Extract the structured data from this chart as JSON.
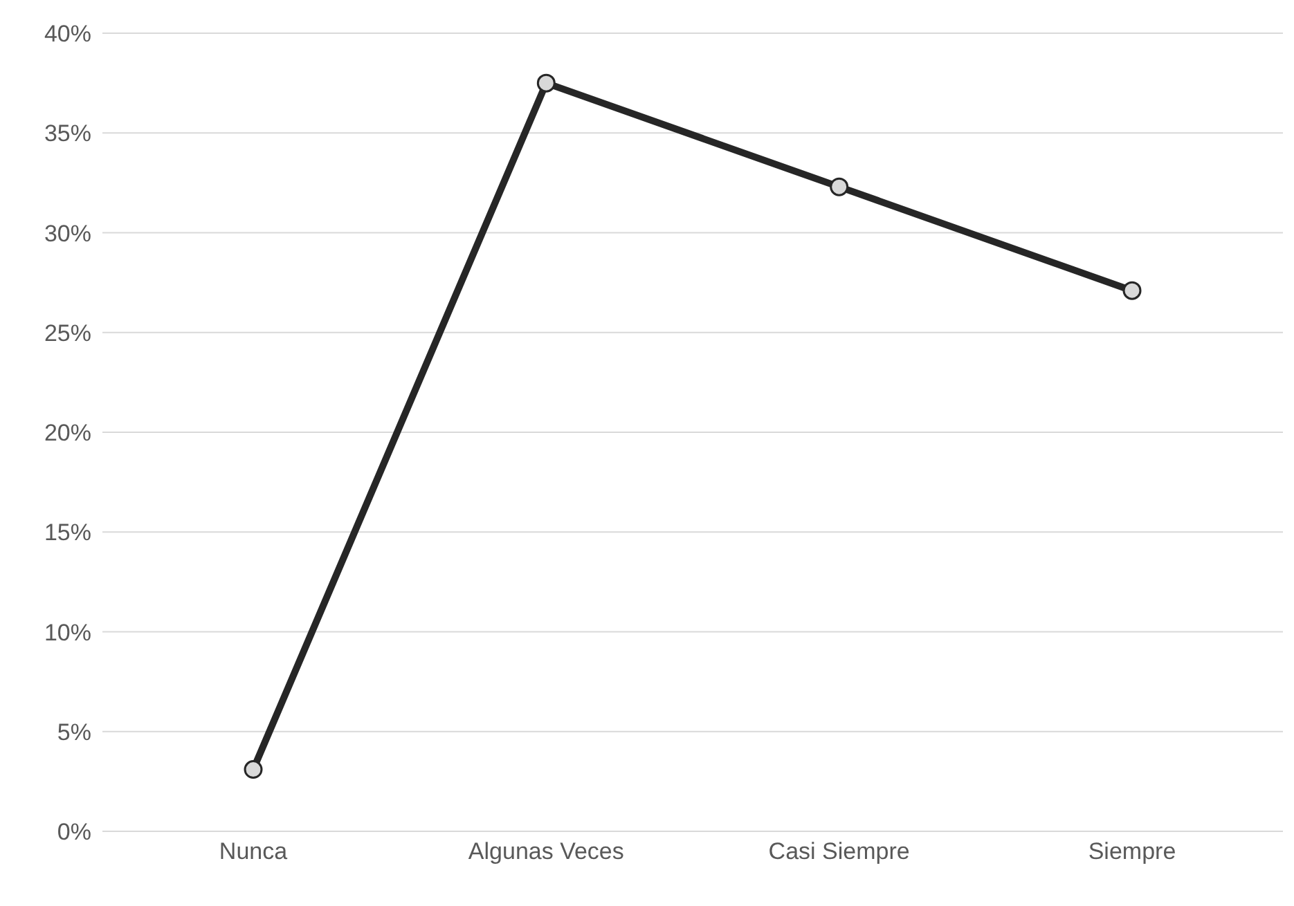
{
  "chart_data": {
    "type": "line",
    "categories": [
      "Nunca",
      "Algunas Veces",
      "Casi Siempre",
      "Siempre"
    ],
    "series": [
      {
        "color": "#262626",
        "values": [
          3.1,
          37.5,
          32.3,
          27.1
        ]
      }
    ],
    "ylim": [
      0,
      40
    ],
    "yticks": [
      {
        "value": 0,
        "label": "0%"
      },
      {
        "value": 5,
        "label": "5%"
      },
      {
        "value": 10,
        "label": "10%"
      },
      {
        "value": 15,
        "label": "15%"
      },
      {
        "value": 20,
        "label": "20%"
      },
      {
        "value": 25,
        "label": "25%"
      },
      {
        "value": 30,
        "label": "30%"
      },
      {
        "value": 35,
        "label": "35%"
      },
      {
        "value": 40,
        "label": "40%"
      }
    ],
    "grid": "y",
    "marker": "circle",
    "legend": false
  }
}
